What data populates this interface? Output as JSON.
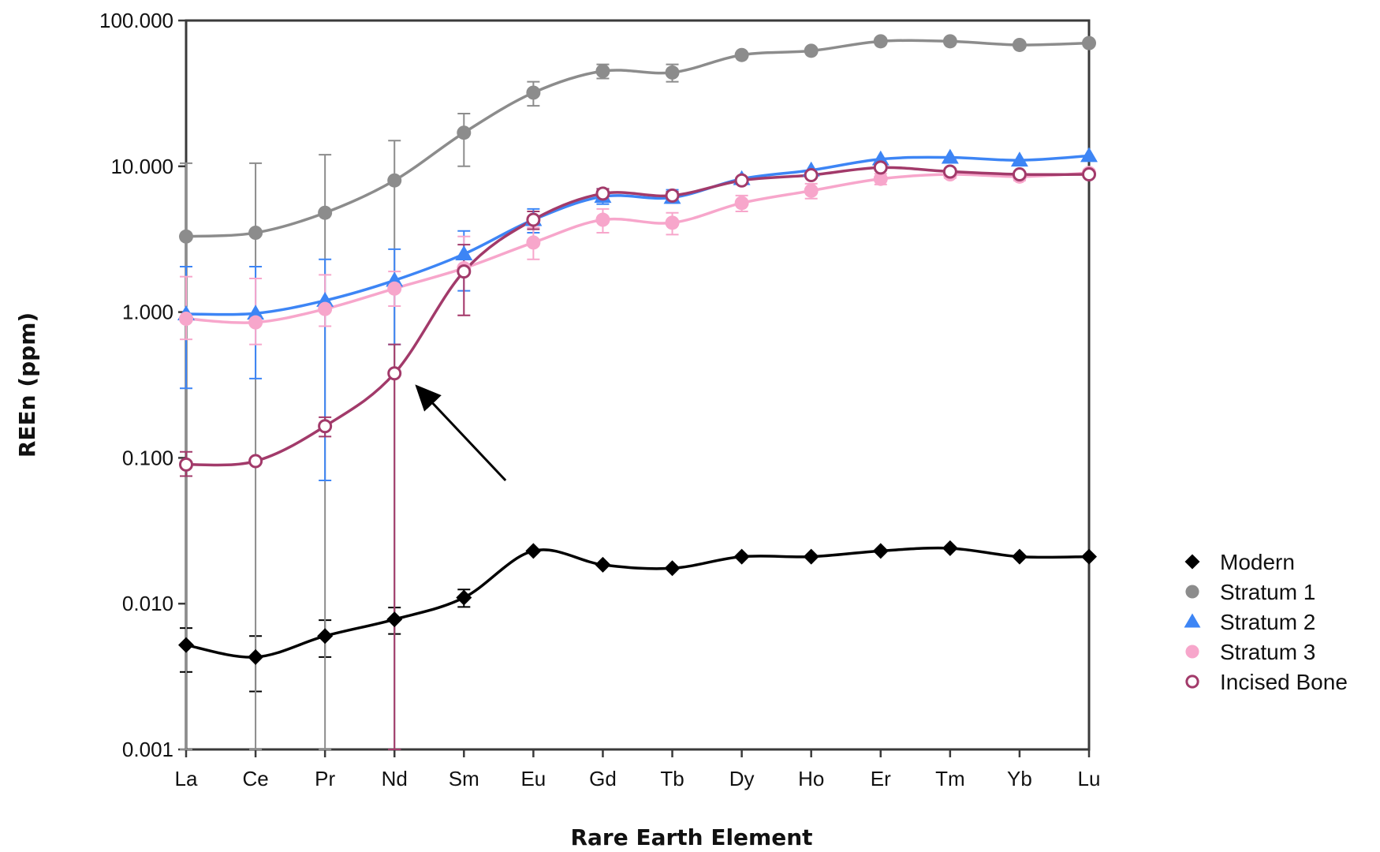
{
  "chart_data": {
    "type": "line",
    "title": "",
    "xlabel": "Rare Earth Element",
    "ylabel": "REEn (ppm)",
    "yscale": "log",
    "ylim": [
      0.001,
      100
    ],
    "yticks": [
      0.001,
      0.01,
      0.1,
      1,
      10,
      100
    ],
    "ytick_labels": [
      "0.001",
      "0.010",
      "0.100",
      "1.000",
      "10.000",
      "100.000"
    ],
    "categories": [
      "La",
      "Ce",
      "Pr",
      "Nd",
      "Sm",
      "Eu",
      "Gd",
      "Tb",
      "Dy",
      "Ho",
      "Er",
      "Tm",
      "Yb",
      "Lu"
    ],
    "grid": false,
    "legend_position": "right",
    "series": [
      {
        "name": "Modern",
        "color": "#000000",
        "marker": "diamond",
        "values": [
          0.0052,
          0.0043,
          0.006,
          0.0078,
          0.011,
          0.023,
          0.0185,
          0.0175,
          0.021,
          0.021,
          0.023,
          0.024,
          0.021,
          0.021
        ],
        "err_low": [
          0.0034,
          0.0025,
          0.0043,
          0.0062,
          0.0095,
          0.023,
          0.0185,
          0.0175,
          0.021,
          0.021,
          0.023,
          0.024,
          0.021,
          0.021
        ],
        "err_high": [
          0.0068,
          0.006,
          0.0077,
          0.0094,
          0.0125,
          0.023,
          0.0185,
          0.0175,
          0.021,
          0.021,
          0.023,
          0.024,
          0.021,
          0.021
        ]
      },
      {
        "name": "Stratum 1",
        "color": "#8c8c8c",
        "marker": "circle",
        "values": [
          3.3,
          3.5,
          4.8,
          8.0,
          17.0,
          32.0,
          45.0,
          44.0,
          58.0,
          62.0,
          72.0,
          72.0,
          68.0,
          70.0
        ],
        "err_low": [
          0.001,
          0.001,
          0.001,
          0.001,
          10.0,
          26.0,
          40.0,
          38.0,
          58.0,
          62.0,
          72.0,
          72.0,
          68.0,
          70.0
        ],
        "err_high": [
          10.5,
          10.5,
          12.0,
          15.0,
          23.0,
          38.0,
          50.0,
          50.0,
          58.0,
          62.0,
          72.0,
          72.0,
          68.0,
          70.0
        ]
      },
      {
        "name": "Stratum 2",
        "color": "#3d85f5",
        "marker": "triangle",
        "values": [
          0.97,
          0.98,
          1.2,
          1.65,
          2.5,
          4.3,
          6.2,
          6.1,
          8.2,
          9.4,
          11.2,
          11.5,
          11.0,
          11.8
        ],
        "err_low": [
          0.3,
          0.35,
          0.07,
          0.6,
          1.4,
          3.5,
          5.5,
          5.6,
          8.2,
          9.4,
          11.2,
          11.5,
          11.0,
          11.8
        ],
        "err_high": [
          2.05,
          2.05,
          2.3,
          2.7,
          3.6,
          5.1,
          7.0,
          6.9,
          8.2,
          9.4,
          11.2,
          11.5,
          11.0,
          11.8
        ]
      },
      {
        "name": "Stratum 3",
        "color": "#f7a6cb",
        "marker": "circle",
        "values": [
          0.9,
          0.85,
          1.05,
          1.45,
          2.0,
          3.0,
          4.3,
          4.1,
          5.6,
          6.8,
          8.2,
          8.8,
          8.5,
          9.0
        ],
        "err_low": [
          0.65,
          0.6,
          0.8,
          1.1,
          0.95,
          2.3,
          3.5,
          3.4,
          4.9,
          6.0,
          7.5,
          8.3,
          8.0,
          8.5
        ],
        "err_high": [
          1.75,
          1.7,
          1.8,
          1.9,
          3.3,
          3.8,
          5.1,
          4.8,
          6.3,
          7.6,
          8.9,
          9.3,
          9.0,
          9.5
        ]
      },
      {
        "name": "Incised Bone",
        "color": "#a23a6a",
        "marker": "open-circle",
        "values": [
          0.09,
          0.095,
          0.165,
          0.38,
          1.9,
          4.3,
          6.5,
          6.3,
          8.0,
          8.7,
          9.8,
          9.2,
          8.8,
          8.8
        ],
        "err_low": [
          0.075,
          0.095,
          0.14,
          0.001,
          0.95,
          3.7,
          6.0,
          5.9,
          8.0,
          8.7,
          9.8,
          9.2,
          8.8,
          8.8
        ],
        "err_high": [
          0.11,
          0.095,
          0.19,
          0.6,
          2.9,
          4.9,
          7.0,
          6.7,
          8.0,
          8.7,
          9.8,
          9.2,
          8.8,
          8.8
        ]
      }
    ],
    "annotations": [
      {
        "type": "arrow",
        "color": "#000000",
        "from": {
          "category": "Sm",
          "value": 0.07
        },
        "to": {
          "category": "Nd",
          "value": 0.31
        }
      }
    ]
  }
}
